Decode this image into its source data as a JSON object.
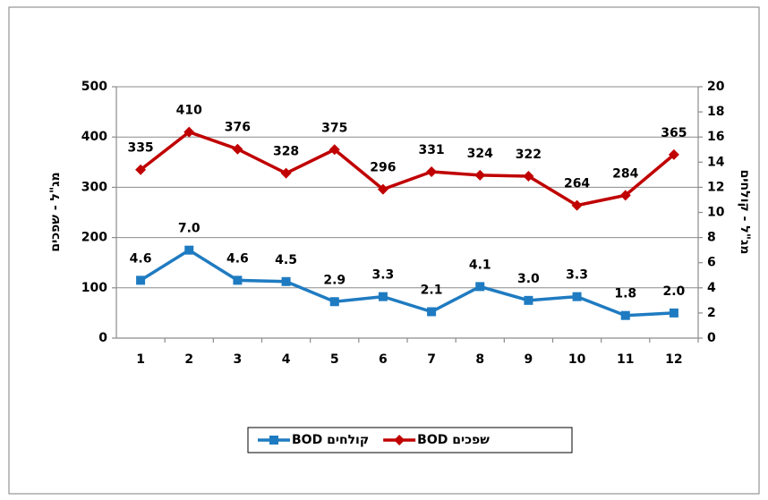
{
  "chart_data": {
    "type": "line",
    "categories": [
      "1",
      "2",
      "3",
      "4",
      "5",
      "6",
      "7",
      "8",
      "9",
      "10",
      "11",
      "12"
    ],
    "ylim": [
      0,
      500
    ],
    "yticks": [
      0,
      100,
      200,
      300,
      400,
      500
    ],
    "y2lim": [
      0,
      20
    ],
    "y2ticks": [
      0,
      2,
      4,
      6,
      8,
      10,
      12,
      14,
      16,
      18,
      20
    ],
    "ylabel": "מג\"ל - שפכים",
    "y2label": "מג\"ל - קולחים",
    "grid": true,
    "legend": "bottom",
    "series": [
      {
        "name": "BOD שפכים",
        "color": "#c00000",
        "marker": "diamond",
        "values": [
          335,
          410,
          376,
          328,
          375,
          296,
          331,
          324,
          322,
          264,
          284,
          365
        ]
      },
      {
        "name": "BOD קולחים",
        "color": "#1f7bc1",
        "marker": "square",
        "axis": "y2",
        "values": [
          4.6,
          7.0,
          4.6,
          4.5,
          2.9,
          3.3,
          2.1,
          4.1,
          3.0,
          3.3,
          1.8,
          2.0
        ],
        "value_labels": [
          "4.6",
          "7.0",
          "4.6",
          "4.5",
          "2.9",
          "3.3",
          "2.1",
          "4.1",
          "3.0",
          "3.3",
          "1.8",
          "2.0"
        ]
      }
    ]
  }
}
